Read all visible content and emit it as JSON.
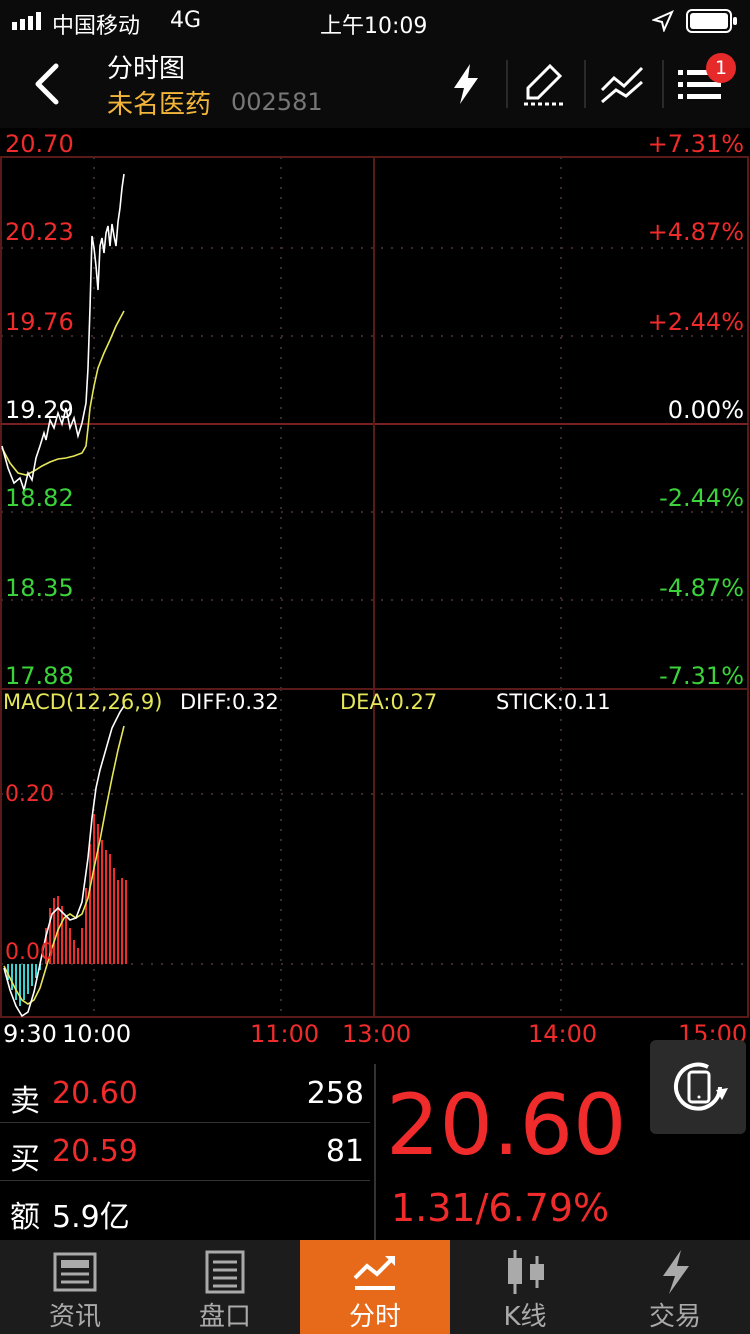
{
  "status_bar": {
    "carrier": "中国移动",
    "network": "4G",
    "time": "上午10:09"
  },
  "header": {
    "title": "分时图",
    "stock_name": "未名医药",
    "stock_code": "002581",
    "badge_count": "1"
  },
  "price_axis": {
    "left": [
      "20.70",
      "20.23",
      "19.76",
      "19.29",
      "18.82",
      "18.35",
      "17.88"
    ],
    "right": [
      "+7.31%",
      "+4.87%",
      "+2.44%",
      "0.00%",
      "-2.44%",
      "-4.87%",
      "-7.31%"
    ]
  },
  "macd": {
    "label": "MACD(12,26,9)",
    "diff": "DIFF:0.32",
    "dea": "DEA:0.27",
    "stick": "STICK:0.11",
    "y_labels": [
      "0.20",
      "0.00"
    ]
  },
  "time_axis": [
    "9:30",
    "10:00",
    "11:00",
    "13:00",
    "14:00",
    "15:00"
  ],
  "quote": {
    "sell_label": "卖",
    "sell_price": "20.60",
    "sell_qty": "258",
    "buy_label": "买",
    "buy_price": "20.59",
    "buy_qty": "81",
    "amount_label": "额",
    "amount_value": "5.9亿",
    "last_price": "20.60",
    "change": "1.31/6.79%"
  },
  "tabs": [
    {
      "label": "资讯",
      "icon": "news-icon"
    },
    {
      "label": "盘口",
      "icon": "orderbook-icon"
    },
    {
      "label": "分时",
      "icon": "intraday-icon"
    },
    {
      "label": "K线",
      "icon": "candlestick-icon"
    },
    {
      "label": "交易",
      "icon": "trade-icon"
    }
  ],
  "colors": {
    "up": "#ef2b2b",
    "down": "#3bd23b",
    "price_line": "#ffffff",
    "avg_line": "#e6e65a",
    "accent": "#e76a1a",
    "stock_name": "#f3b63a"
  }
}
